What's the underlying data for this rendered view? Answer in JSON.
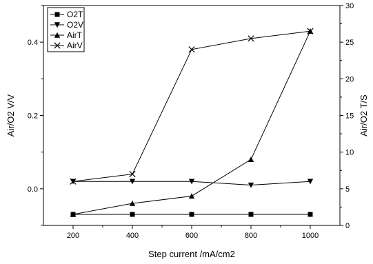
{
  "chart_data": {
    "type": "line",
    "title": "",
    "xlabel": "Step current /mA/cm2",
    "ylabel_left": "Air/O2 V/V",
    "ylabel_right": "Air/O2 T/S",
    "x": [
      200,
      400,
      600,
      800,
      1000
    ],
    "xlim": [
      100,
      1100
    ],
    "xticks": [
      200,
      400,
      600,
      800,
      1000
    ],
    "ylim_left": [
      -0.1,
      0.5
    ],
    "yticks_left": [
      0.0,
      0.2,
      0.4
    ],
    "ytick_labels_left": [
      "0.0",
      "0.2",
      "0.4"
    ],
    "ylim_right": [
      0,
      30
    ],
    "yticks_right": [
      0,
      5,
      10,
      15,
      20,
      25,
      30
    ],
    "grid": false,
    "legend_position": "top-left",
    "series": [
      {
        "name": "O2T",
        "axis": "right",
        "marker": "square",
        "values": [
          1.5,
          1.5,
          1.5,
          1.5,
          1.5
        ]
      },
      {
        "name": "O2V",
        "axis": "left",
        "marker": "triangle-down",
        "values": [
          0.02,
          0.02,
          0.02,
          0.01,
          0.02
        ]
      },
      {
        "name": "AirT",
        "axis": "right",
        "marker": "triangle-up",
        "values": [
          1.5,
          3.0,
          4.0,
          9.0,
          26.5
        ]
      },
      {
        "name": "AirV",
        "axis": "left",
        "marker": "x",
        "values": [
          0.02,
          0.04,
          0.38,
          0.41,
          0.43
        ]
      }
    ]
  }
}
